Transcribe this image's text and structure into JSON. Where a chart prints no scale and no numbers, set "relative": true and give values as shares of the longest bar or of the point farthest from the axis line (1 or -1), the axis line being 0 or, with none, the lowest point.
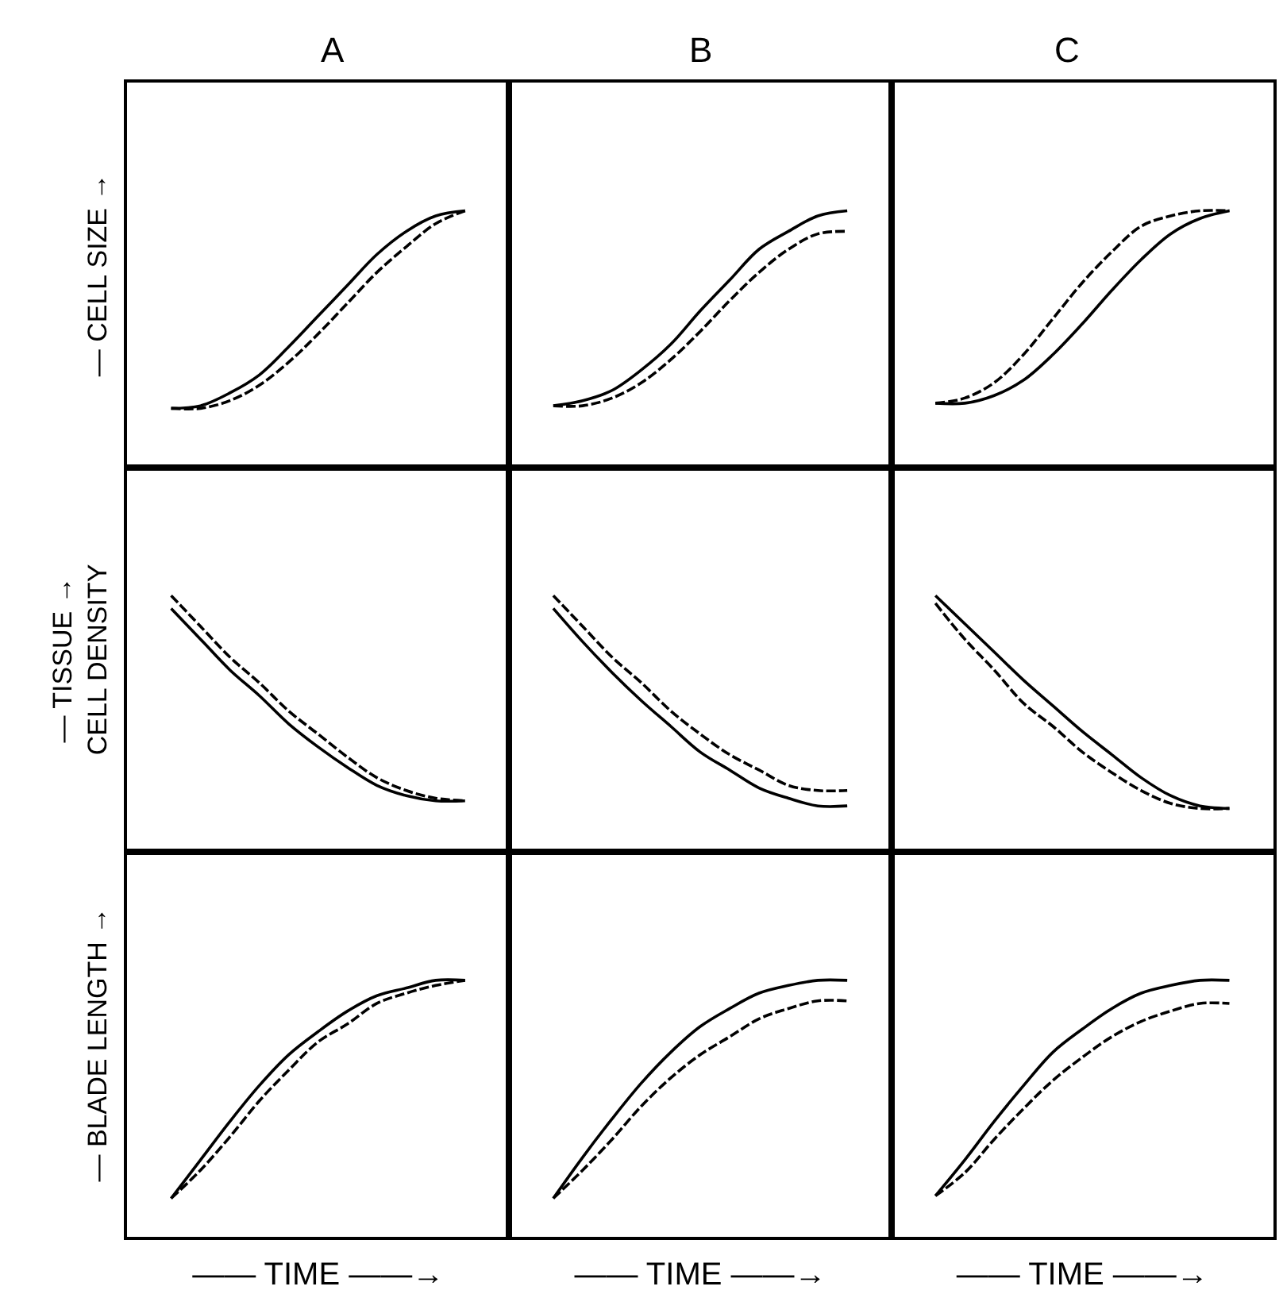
{
  "chart_data": [
    {
      "type": "line",
      "title": "A",
      "ylabel": "— CELL SIZE →",
      "relative": true,
      "tick_labels": false,
      "grid": false,
      "categories": [
        null,
        null,
        null,
        null,
        null,
        null,
        null,
        null,
        null,
        null,
        null
      ],
      "series": [
        {
          "color": "#000000",
          "line_style": "solid",
          "values": [
            0.23,
            0.24,
            0.29,
            0.36,
            0.47,
            0.59,
            0.71,
            0.83,
            0.92,
            0.98,
            1
          ]
        },
        {
          "color": "#000000",
          "line_style": "dashed",
          "values": [
            0.23,
            0.23,
            0.26,
            0.32,
            0.41,
            0.52,
            0.64,
            0.76,
            0.86,
            0.95,
            1
          ]
        }
      ]
    },
    {
      "type": "line",
      "title": "B",
      "relative": true,
      "tick_labels": false,
      "grid": false,
      "categories": [
        null,
        null,
        null,
        null,
        null,
        null,
        null,
        null,
        null,
        null,
        null
      ],
      "series": [
        {
          "color": "#000000",
          "line_style": "solid",
          "values": [
            0.24,
            0.26,
            0.3,
            0.38,
            0.48,
            0.61,
            0.73,
            0.85,
            0.92,
            0.98,
            1
          ]
        },
        {
          "color": "#000000",
          "line_style": "dashed",
          "values": [
            0.24,
            0.24,
            0.27,
            0.33,
            0.42,
            0.53,
            0.65,
            0.76,
            0.85,
            0.91,
            0.92
          ]
        }
      ]
    },
    {
      "type": "line",
      "title": "C",
      "relative": true,
      "tick_labels": false,
      "grid": false,
      "categories": [
        null,
        null,
        null,
        null,
        null,
        null,
        null,
        null,
        null,
        null,
        null
      ],
      "series": [
        {
          "color": "#000000",
          "line_style": "solid",
          "values": [
            0.25,
            0.25,
            0.28,
            0.34,
            0.44,
            0.56,
            0.69,
            0.81,
            0.91,
            0.97,
            1
          ]
        },
        {
          "color": "#000000",
          "line_style": "dashed",
          "values": [
            0.25,
            0.27,
            0.33,
            0.44,
            0.58,
            0.72,
            0.84,
            0.94,
            0.98,
            1,
            1
          ]
        }
      ]
    },
    {
      "type": "line",
      "ylabel": "— TISSUE →\nCELL DENSITY",
      "relative": true,
      "tick_labels": false,
      "grid": false,
      "categories": [
        null,
        null,
        null,
        null,
        null,
        null,
        null,
        null,
        null,
        null,
        null
      ],
      "series": [
        {
          "color": "#000000",
          "line_style": "solid",
          "values": [
            0.95,
            0.83,
            0.71,
            0.61,
            0.5,
            0.41,
            0.33,
            0.26,
            0.22,
            0.2,
            0.2
          ]
        },
        {
          "color": "#000000",
          "line_style": "dashed",
          "values": [
            1,
            0.88,
            0.76,
            0.66,
            0.55,
            0.46,
            0.37,
            0.29,
            0.24,
            0.21,
            0.2
          ]
        }
      ]
    },
    {
      "type": "line",
      "relative": true,
      "tick_labels": false,
      "grid": false,
      "categories": [
        null,
        null,
        null,
        null,
        null,
        null,
        null,
        null,
        null,
        null,
        null
      ],
      "series": [
        {
          "color": "#000000",
          "line_style": "solid",
          "values": [
            0.95,
            0.82,
            0.7,
            0.59,
            0.49,
            0.39,
            0.32,
            0.25,
            0.21,
            0.18,
            0.18
          ]
        },
        {
          "color": "#000000",
          "line_style": "dashed",
          "values": [
            1,
            0.88,
            0.76,
            0.66,
            0.55,
            0.46,
            0.38,
            0.32,
            0.26,
            0.24,
            0.24
          ]
        }
      ]
    },
    {
      "type": "line",
      "relative": true,
      "tick_labels": false,
      "grid": false,
      "categories": [
        null,
        null,
        null,
        null,
        null,
        null,
        null,
        null,
        null,
        null,
        null
      ],
      "series": [
        {
          "color": "#000000",
          "line_style": "solid",
          "values": [
            1,
            0.89,
            0.78,
            0.67,
            0.57,
            0.47,
            0.38,
            0.29,
            0.22,
            0.18,
            0.17
          ]
        },
        {
          "color": "#000000",
          "line_style": "dashed",
          "values": [
            0.97,
            0.83,
            0.71,
            0.58,
            0.49,
            0.39,
            0.31,
            0.24,
            0.19,
            0.17,
            0.17
          ]
        }
      ]
    },
    {
      "type": "line",
      "ylabel": "— BLADE LENGTH →",
      "xlabel": "—— TIME ——→",
      "relative": true,
      "tick_labels": false,
      "grid": false,
      "categories": [
        null,
        null,
        null,
        null,
        null,
        null,
        null,
        null,
        null,
        null,
        null
      ],
      "series": [
        {
          "color": "#000000",
          "line_style": "solid",
          "values": [
            0.15,
            0.3,
            0.45,
            0.59,
            0.71,
            0.8,
            0.88,
            0.94,
            0.97,
            1,
            1
          ]
        },
        {
          "color": "#000000",
          "line_style": "dashed",
          "values": [
            0.15,
            0.26,
            0.39,
            0.53,
            0.65,
            0.76,
            0.83,
            0.91,
            0.95,
            0.98,
            1
          ]
        }
      ]
    },
    {
      "type": "line",
      "xlabel": "—— TIME ——→",
      "relative": true,
      "tick_labels": false,
      "grid": false,
      "categories": [
        null,
        null,
        null,
        null,
        null,
        null,
        null,
        null,
        null,
        null,
        null
      ],
      "series": [
        {
          "color": "#000000",
          "line_style": "solid",
          "values": [
            0.15,
            0.31,
            0.46,
            0.6,
            0.72,
            0.82,
            0.89,
            0.95,
            0.98,
            1,
            1
          ]
        },
        {
          "color": "#000000",
          "line_style": "dashed",
          "values": [
            0.15,
            0.26,
            0.38,
            0.51,
            0.62,
            0.71,
            0.78,
            0.85,
            0.89,
            0.92,
            0.92
          ]
        }
      ]
    },
    {
      "type": "line",
      "xlabel": "—— TIME ——→",
      "relative": true,
      "tick_labels": false,
      "grid": false,
      "categories": [
        null,
        null,
        null,
        null,
        null,
        null,
        null,
        null,
        null,
        null,
        null
      ],
      "series": [
        {
          "color": "#000000",
          "line_style": "solid",
          "values": [
            0.16,
            0.3,
            0.45,
            0.59,
            0.72,
            0.81,
            0.89,
            0.95,
            0.98,
            1,
            1
          ]
        },
        {
          "color": "#000000",
          "line_style": "dashed",
          "values": [
            0.16,
            0.25,
            0.38,
            0.5,
            0.61,
            0.7,
            0.78,
            0.84,
            0.88,
            0.91,
            0.91
          ]
        }
      ]
    }
  ]
}
